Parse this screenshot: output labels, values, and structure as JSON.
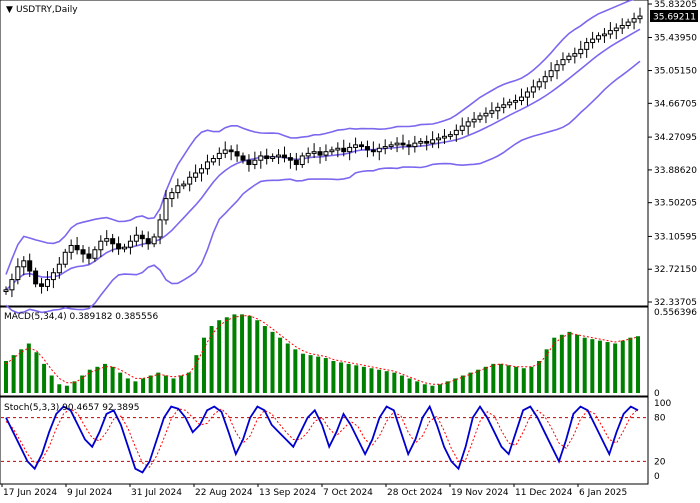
{
  "window": {
    "title": "USDTRY,Daily",
    "menu_glyph": "▼"
  },
  "price_pane": {
    "current_price": "35.69211",
    "y_ticks": [
      "35.83205",
      "35.43950",
      "35.05150",
      "34.66705",
      "34.27095",
      "33.88620",
      "33.50205",
      "33.10595",
      "32.72150",
      "32.33705"
    ],
    "ylim": [
      32.33705,
      35.83205
    ]
  },
  "macd_pane": {
    "label": "MACD(5,34,4) 0.389182 0.385556",
    "y_ticks": [
      "0.556396",
      "0"
    ],
    "ylim": [
      0,
      0.556396
    ]
  },
  "stoch_pane": {
    "label": "Stoch(5,3,3) 90.4657 92.3895",
    "y_ticks": [
      "100",
      "80",
      "20",
      "0"
    ],
    "levels": [
      80,
      20
    ]
  },
  "x_axis": {
    "labels": [
      "17 Jun 2024",
      "9 Jul 2024",
      "31 Jul 2024",
      "22 Aug 2024",
      "13 Sep 2024",
      "7 Oct 2024",
      "28 Oct 2024",
      "19 Nov 2024",
      "11 Dec 2024",
      "6 Jan 2025"
    ]
  },
  "colors": {
    "candle": "#000000",
    "band": "#7b68ee",
    "macd_bar": "#008000",
    "macd_signal": "#ff0000",
    "stoch_main": "#0000cd",
    "stoch_signal": "#ff0000",
    "level_line": "#c80000",
    "price_tag_bg": "#000000",
    "price_tag_text": "#ffffff"
  },
  "chart_data": [
    {
      "type": "candlestick",
      "title": "USDTRY,Daily",
      "ylim": [
        32.33705,
        35.83205
      ],
      "note_series": [
        "price",
        "bollinger_upper",
        "bollinger_middle",
        "bollinger_lower"
      ],
      "close": [
        32.48,
        32.6,
        32.75,
        32.82,
        32.7,
        32.55,
        32.52,
        32.6,
        32.68,
        32.78,
        32.92,
        33.0,
        32.95,
        32.9,
        32.85,
        32.95,
        33.05,
        33.08,
        33.02,
        32.96,
        32.98,
        33.05,
        33.12,
        33.08,
        33.02,
        33.1,
        33.3,
        33.55,
        33.62,
        33.7,
        33.72,
        33.8,
        33.85,
        33.9,
        33.98,
        34.02,
        34.08,
        34.12,
        34.1,
        34.05,
        34.0,
        33.95,
        34.0,
        34.05,
        34.02,
        34.04,
        34.06,
        34.03,
        34.0,
        33.95,
        34.05,
        34.08,
        34.1,
        34.06,
        34.1,
        34.12,
        34.14,
        34.1,
        34.15,
        34.18,
        34.16,
        34.12,
        34.1,
        34.14,
        34.16,
        34.18,
        34.2,
        34.18,
        34.16,
        34.2,
        34.22,
        34.2,
        34.24,
        34.26,
        34.28,
        34.3,
        34.35,
        34.4,
        34.45,
        34.48,
        34.52,
        34.55,
        34.58,
        34.62,
        34.65,
        34.68,
        34.7,
        34.74,
        34.8,
        34.86,
        34.92,
        34.98,
        35.05,
        35.12,
        35.18,
        35.22,
        35.25,
        35.3,
        35.38,
        35.42,
        35.46,
        35.48,
        35.52,
        35.55,
        35.58,
        35.62,
        35.66,
        35.69
      ]
    },
    {
      "type": "bar",
      "title": "MACD(5,34,4)",
      "ylim": [
        0,
        0.556396
      ],
      "values": [
        0.22,
        0.26,
        0.3,
        0.34,
        0.28,
        0.2,
        0.12,
        0.06,
        0.05,
        0.08,
        0.12,
        0.16,
        0.18,
        0.2,
        0.18,
        0.14,
        0.1,
        0.08,
        0.1,
        0.12,
        0.14,
        0.12,
        0.1,
        0.12,
        0.14,
        0.26,
        0.38,
        0.46,
        0.5,
        0.52,
        0.54,
        0.54,
        0.53,
        0.5,
        0.46,
        0.42,
        0.38,
        0.34,
        0.3,
        0.27,
        0.26,
        0.25,
        0.24,
        0.22,
        0.21,
        0.2,
        0.19,
        0.18,
        0.17,
        0.16,
        0.15,
        0.14,
        0.12,
        0.1,
        0.08,
        0.06,
        0.05,
        0.06,
        0.08,
        0.1,
        0.12,
        0.14,
        0.16,
        0.18,
        0.2,
        0.2,
        0.19,
        0.18,
        0.17,
        0.18,
        0.22,
        0.3,
        0.38,
        0.4,
        0.42,
        0.4,
        0.38,
        0.37,
        0.36,
        0.35,
        0.34,
        0.36,
        0.38,
        0.39
      ],
      "signal": [
        0.2,
        0.24,
        0.28,
        0.31,
        0.29,
        0.23,
        0.16,
        0.1,
        0.07,
        0.07,
        0.1,
        0.14,
        0.16,
        0.18,
        0.18,
        0.16,
        0.13,
        0.1,
        0.1,
        0.11,
        0.13,
        0.12,
        0.11,
        0.12,
        0.13,
        0.2,
        0.31,
        0.4,
        0.46,
        0.5,
        0.52,
        0.53,
        0.53,
        0.51,
        0.48,
        0.44,
        0.4,
        0.36,
        0.32,
        0.29,
        0.27,
        0.26,
        0.25,
        0.23,
        0.22,
        0.21,
        0.2,
        0.19,
        0.18,
        0.17,
        0.16,
        0.15,
        0.13,
        0.11,
        0.09,
        0.07,
        0.06,
        0.06,
        0.07,
        0.09,
        0.11,
        0.13,
        0.15,
        0.17,
        0.19,
        0.2,
        0.19,
        0.18,
        0.18,
        0.18,
        0.2,
        0.26,
        0.34,
        0.38,
        0.41,
        0.4,
        0.39,
        0.38,
        0.37,
        0.36,
        0.35,
        0.36,
        0.37,
        0.386
      ]
    },
    {
      "type": "line",
      "title": "Stoch(5,3,3)",
      "ylim": [
        0,
        100
      ],
      "main": [
        80,
        60,
        40,
        20,
        10,
        30,
        60,
        85,
        95,
        90,
        70,
        50,
        40,
        60,
        85,
        90,
        70,
        40,
        10,
        5,
        20,
        50,
        80,
        95,
        92,
        80,
        60,
        70,
        90,
        95,
        88,
        60,
        30,
        50,
        80,
        95,
        90,
        70,
        60,
        50,
        40,
        60,
        80,
        90,
        70,
        40,
        60,
        85,
        70,
        50,
        30,
        50,
        80,
        95,
        90,
        60,
        30,
        50,
        80,
        95,
        70,
        40,
        20,
        10,
        40,
        80,
        95,
        80,
        60,
        40,
        30,
        60,
        90,
        95,
        80,
        60,
        40,
        20,
        50,
        85,
        95,
        90,
        70,
        50,
        30,
        60,
        85,
        95,
        90
      ],
      "signal": [
        75,
        65,
        48,
        30,
        18,
        22,
        40,
        65,
        85,
        92,
        85,
        68,
        52,
        48,
        60,
        78,
        82,
        65,
        40,
        18,
        12,
        28,
        52,
        78,
        92,
        90,
        80,
        70,
        72,
        85,
        92,
        82,
        60,
        45,
        55,
        78,
        90,
        85,
        72,
        60,
        50,
        50,
        60,
        75,
        80,
        65,
        55,
        65,
        75,
        68,
        50,
        42,
        55,
        75,
        88,
        82,
        60,
        45,
        55,
        75,
        82,
        62,
        38,
        20,
        22,
        48,
        75,
        88,
        82,
        62,
        45,
        42,
        60,
        82,
        90,
        82,
        65,
        45,
        38,
        55,
        78,
        90,
        85,
        68,
        50,
        45,
        62,
        82,
        92
      ]
    }
  ]
}
